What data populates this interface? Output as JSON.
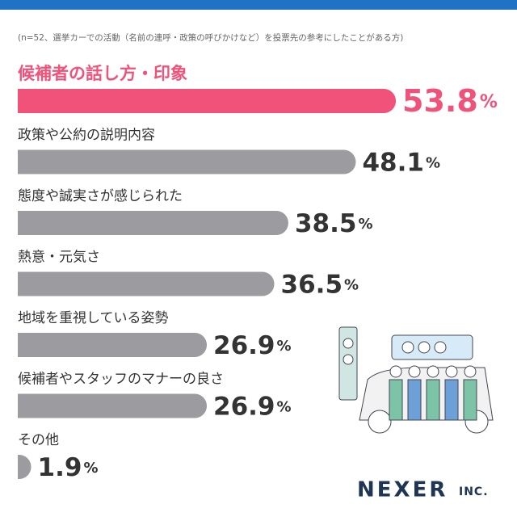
{
  "chart_data": {
    "type": "bar",
    "orientation": "horizontal",
    "subtitle": "(n=52、選挙カーでの活動（名前の連呼・政策の呼びかけなど）を投票先の参考にしたことがある方)",
    "categories": [
      "候補者の話し方・印象",
      "政策や公約の説明内容",
      "態度や誠実さが感じられた",
      "熱意・元気さ",
      "地域を重視している姿勢",
      "候補者やスタッフのマナーの良さ",
      "その他"
    ],
    "values": [
      53.8,
      48.1,
      38.5,
      36.5,
      26.9,
      26.9,
      1.9
    ],
    "unit": "%",
    "colors": [
      "#f0527a",
      "#9c9ca0",
      "#9c9ca0",
      "#9c9ca0",
      "#9c9ca0",
      "#9c9ca0",
      "#9c9ca0"
    ],
    "brand": "NEXER",
    "brand_suffix": "INC."
  }
}
